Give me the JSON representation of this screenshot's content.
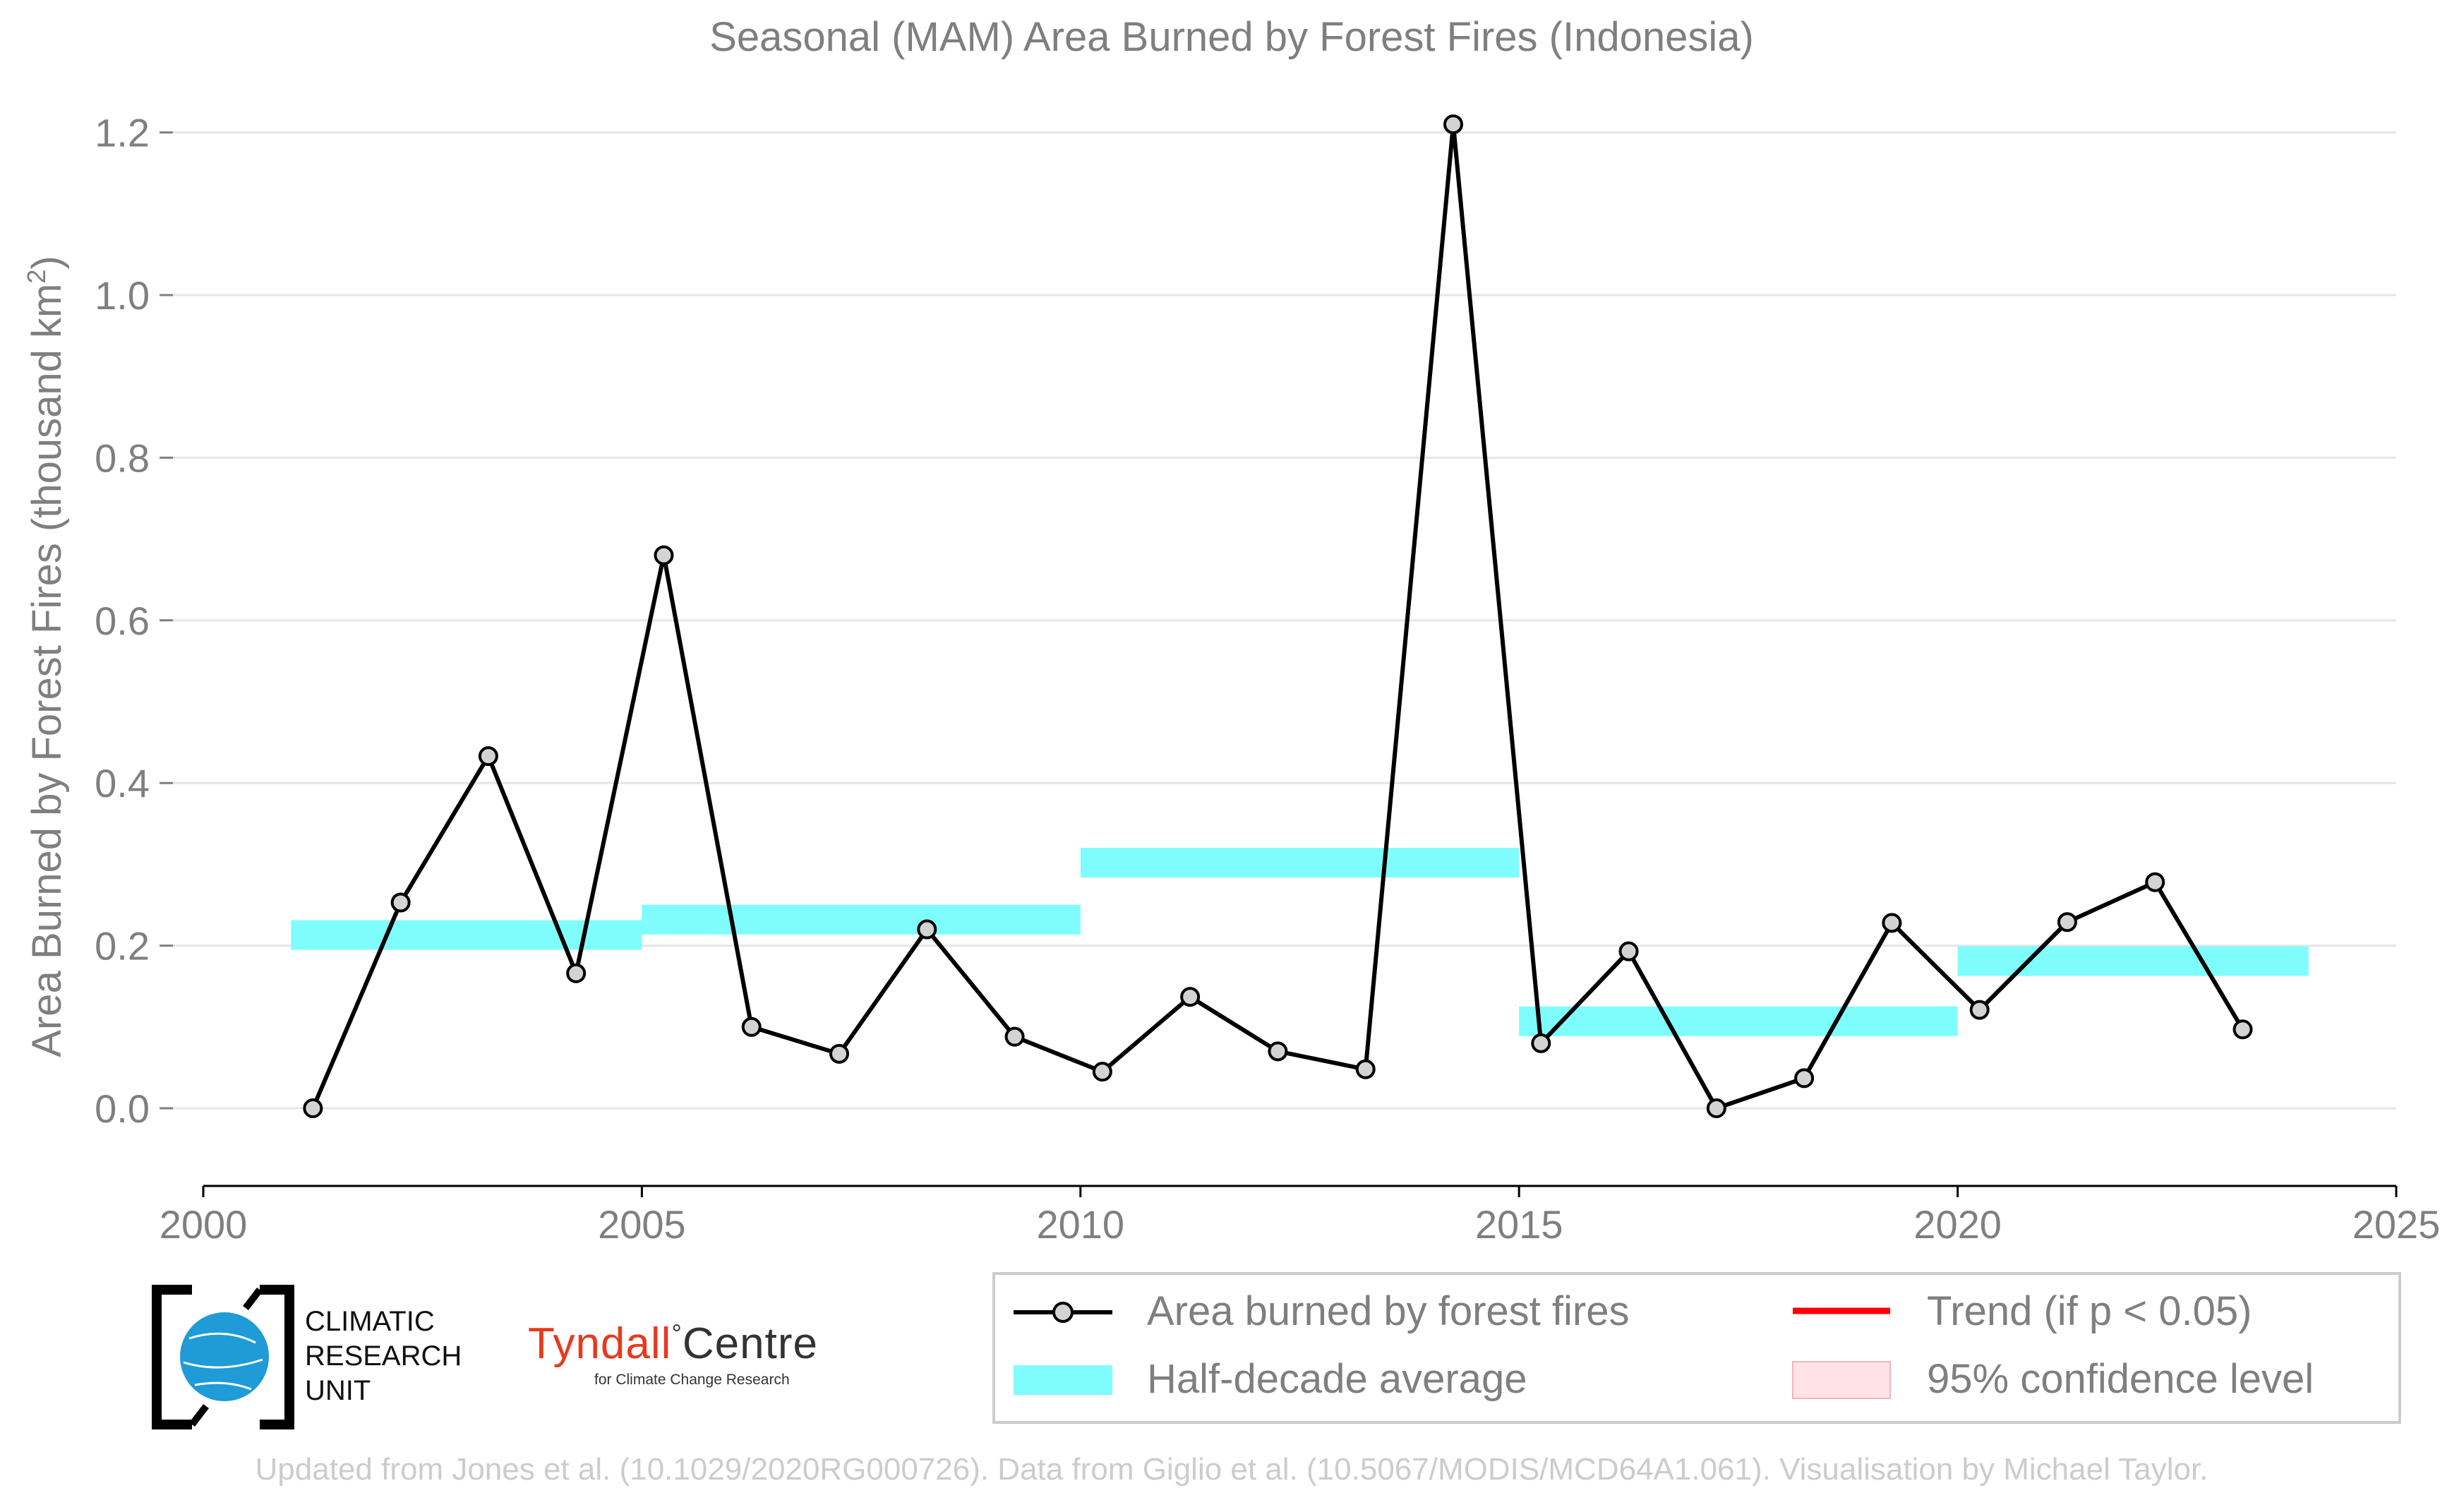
{
  "chart_data": {
    "type": "line",
    "title": "Seasonal (MAM) Area Burned by Forest Fires (Indonesia)",
    "ylabel": "Area Burned by Forest Fires (thousand km",
    "ylabel_sup": "2",
    "ylabel_close": ")",
    "xlim": [
      2000,
      2025
    ],
    "ylim": [
      -0.1,
      1.25
    ],
    "x_ticks": [
      2000,
      2005,
      2010,
      2015,
      2020,
      2025
    ],
    "y_ticks": [
      0.0,
      0.2,
      0.4,
      0.6,
      0.8,
      1.0,
      1.2
    ],
    "y_tick_labels": [
      "0.0",
      "0.2",
      "0.4",
      "0.6",
      "0.8",
      "1.0",
      "1.2"
    ],
    "grid": "horizontal",
    "series": [
      {
        "name": "Area burned by forest fires",
        "color": "#000000",
        "marker_color": "#d3d3d3",
        "x": [
          2001.25,
          2002.25,
          2003.25,
          2004.25,
          2005.25,
          2006.25,
          2007.25,
          2008.25,
          2009.25,
          2010.25,
          2011.25,
          2012.25,
          2013.25,
          2014.25,
          2015.25,
          2016.25,
          2017.25,
          2018.25,
          2019.25,
          2020.25,
          2021.25,
          2022.25,
          2023.25
        ],
        "y": [
          0.0,
          0.253,
          0.433,
          0.166,
          0.68,
          0.1,
          0.067,
          0.22,
          0.088,
          0.045,
          0.137,
          0.07,
          0.048,
          1.21,
          0.08,
          0.193,
          0.0,
          0.037,
          0.228,
          0.121,
          0.229,
          0.278,
          0.097
        ]
      }
    ],
    "half_decade_averages": {
      "name": "Half-decade average",
      "color": "#7ffdfd",
      "segments": [
        {
          "x0": 2001,
          "x1": 2005,
          "y": 0.213
        },
        {
          "x0": 2005,
          "x1": 2010,
          "y": 0.232
        },
        {
          "x0": 2010,
          "x1": 2015,
          "y": 0.302
        },
        {
          "x0": 2015,
          "x1": 2020,
          "y": 0.107
        },
        {
          "x0": 2020,
          "x1": 2024,
          "y": 0.181
        }
      ]
    },
    "legend": {
      "placement": "bottom-right",
      "entries": [
        {
          "label": "Area burned by forest fires",
          "kind": "line-marker",
          "color": "#000000"
        },
        {
          "label": "Trend (if p < 0.05)",
          "kind": "line",
          "color": "#ff0000"
        },
        {
          "label": "Half-decade average",
          "kind": "band",
          "color": "#7ffdfd"
        },
        {
          "label": "95% confidence level",
          "kind": "patch",
          "color": "#ffd9dd"
        }
      ]
    },
    "footer": "Updated from Jones et al. (10.1029/2020RG000726). Data from Giglio et al. (10.5067/MODIS/MCD64A1.061). Visualisation by Michael Taylor."
  },
  "logos": {
    "cru_lines": [
      "CLIMATIC",
      "RESEARCH",
      "UNIT"
    ],
    "tyndall_main_red": "Tyndall",
    "tyndall_degree": "°",
    "tyndall_main": "Centre",
    "tyndall_sub": "for Climate Change Research"
  },
  "colors": {
    "text_gray": "#7f7f7f",
    "footer_gray": "#cccccc",
    "grid": "#e5e5e5"
  }
}
